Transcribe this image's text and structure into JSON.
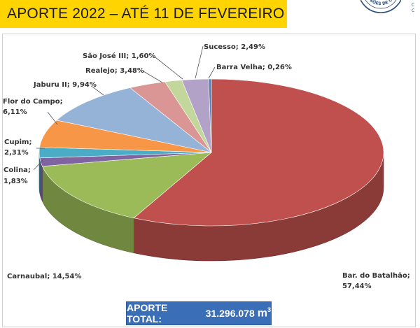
{
  "header": {
    "title": "APORTE 2022 – ATÉ 11 DE FEVEREIRO",
    "title_band_color": "#ffd400"
  },
  "logo": {
    "icon": "circular-seal-logo",
    "text": "RTEÕES DE CRATE",
    "side_letters": [
      "C",
      "C"
    ]
  },
  "total": {
    "label": "APORTE TOTAL:",
    "value": "31.296.078",
    "unit": "m",
    "unit_exp": "3",
    "color": "#3a6fb7"
  },
  "chart_data": {
    "type": "pie",
    "style": "3d-exploded-none",
    "title": "",
    "slices": [
      {
        "name": "Bar. do Batalhão",
        "label": "Bar. do Batalhão;",
        "pct_text": "57,44%",
        "value": 57.44,
        "color": "#c0504d"
      },
      {
        "name": "Carnaubal",
        "label": "Carnaubal; 14,54%",
        "pct_text": "",
        "value": 14.54,
        "color": "#9bbb59"
      },
      {
        "name": "Colina",
        "label": "Colina;",
        "pct_text": "1,83%",
        "value": 1.83,
        "color": "#8064a2"
      },
      {
        "name": "Cupim",
        "label": "Cupim;",
        "pct_text": "2,31%",
        "value": 2.31,
        "color": "#4bacc6"
      },
      {
        "name": "Flor do Campo",
        "label": "Flor do Campo;",
        "pct_text": "6,11%",
        "value": 6.11,
        "color": "#f79646"
      },
      {
        "name": "Jaburu II",
        "label": "Jaburu II; 9,94%",
        "pct_text": "",
        "value": 9.94,
        "color": "#95b3d7"
      },
      {
        "name": "Realejo",
        "label": "Realejo; 3,48%",
        "pct_text": "",
        "value": 3.48,
        "color": "#d99694"
      },
      {
        "name": "São José III",
        "label": "São José III; 1,60%",
        "pct_text": "",
        "value": 1.6,
        "color": "#c3d69b"
      },
      {
        "name": "Sucesso",
        "label": "Sucesso; 2,49%",
        "pct_text": "",
        "value": 2.49,
        "color": "#b3a2c7"
      },
      {
        "name": "Barra Velha",
        "label": "Barra Velha; 0,26%",
        "pct_text": "",
        "value": 0.26,
        "color": "#4f81bd"
      }
    ]
  }
}
